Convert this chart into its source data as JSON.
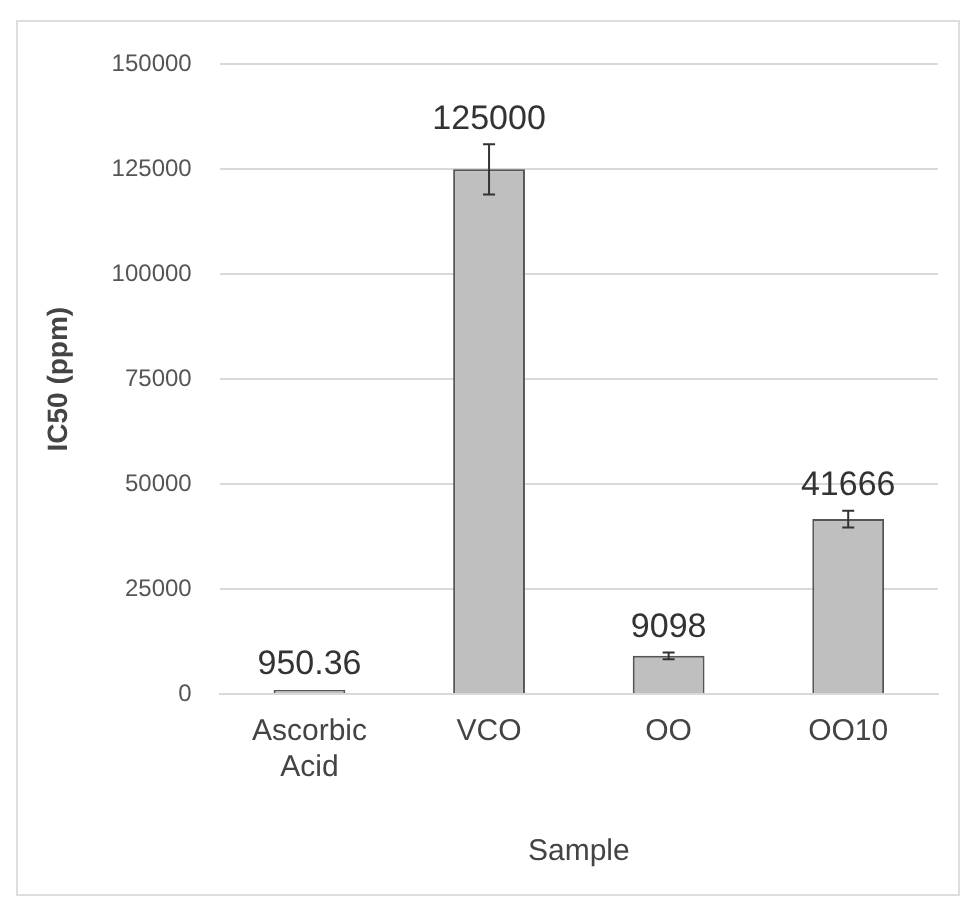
{
  "chart_data": {
    "type": "bar",
    "xlabel": "Sample",
    "ylabel": "IC50 (ppm)",
    "categories": [
      "Ascorbic Acid",
      "VCO",
      "OO",
      "OO10"
    ],
    "values": [
      950.36,
      125000,
      9098,
      41666
    ],
    "errors": [
      null,
      6000,
      800,
      2000
    ],
    "color": "#bfbfbf",
    "ylim": [
      0,
      150000
    ],
    "yticks": [
      0,
      25000,
      50000,
      75000,
      100000,
      125000,
      150000
    ],
    "grid": "y",
    "data_labels": true,
    "legend": false
  }
}
